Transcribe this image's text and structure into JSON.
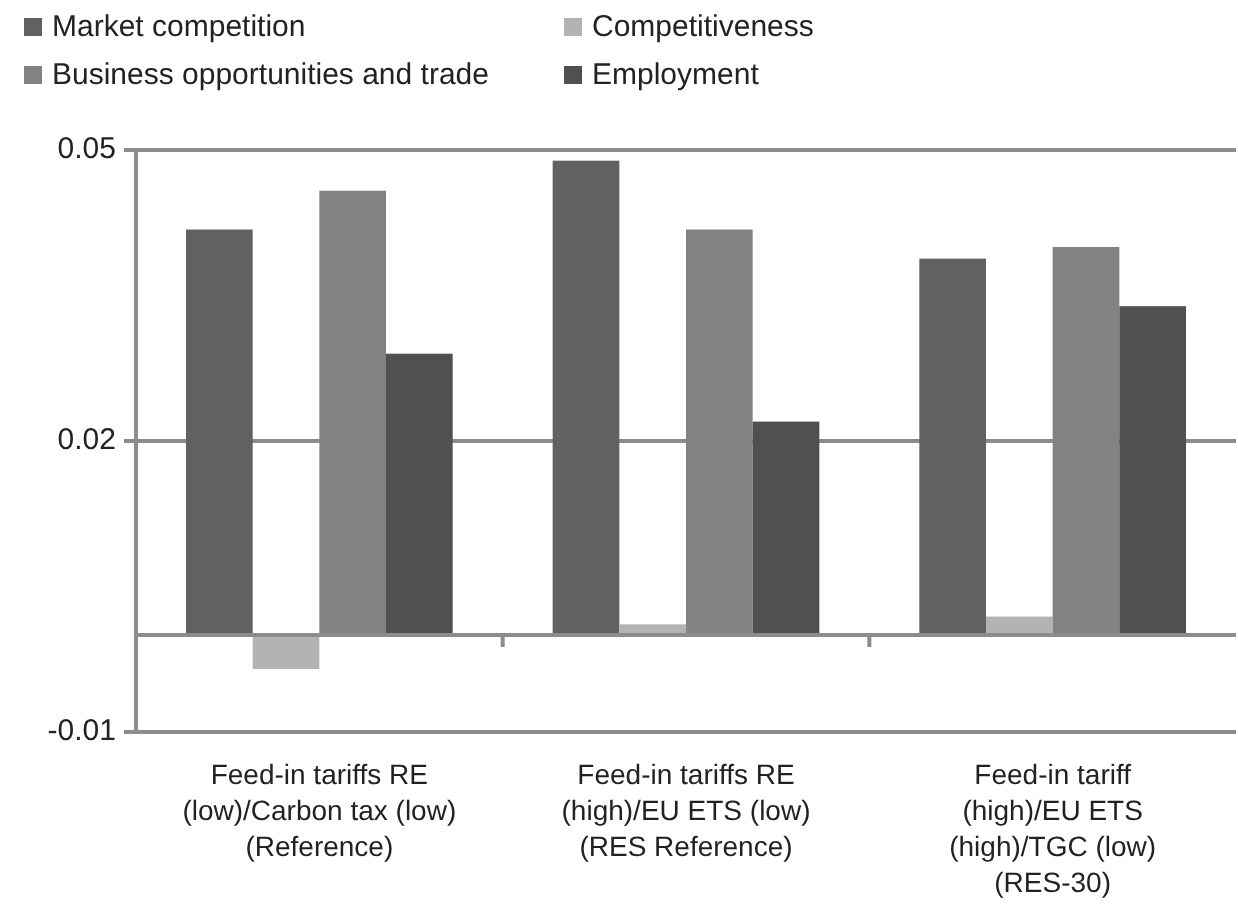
{
  "chart_data": {
    "type": "bar",
    "categories": [
      "Feed-in tariffs RE (low)/Carbon tax (low) (Reference)",
      "Feed-in tariffs RE (high)/EU ETS (low) (RES Reference)",
      "Feed-in tariff (high)/EU ETS (high)/TGC (low) (RES-30)"
    ],
    "series": [
      {
        "name": "Market competition",
        "color": "#616161",
        "values": [
          0.0418,
          0.0489,
          0.0388
        ]
      },
      {
        "name": "Competitiveness",
        "color": "#b3b3b3",
        "values": [
          -0.0035,
          0.0011,
          0.0019
        ]
      },
      {
        "name": "Business opportunities and trade",
        "color": "#828282",
        "values": [
          0.0458,
          0.0418,
          0.04
        ]
      },
      {
        "name": "Employment",
        "color": "#505050",
        "values": [
          0.029,
          0.022,
          0.0339
        ]
      }
    ],
    "ylim": [
      -0.01,
      0.05
    ],
    "yticks": [
      -0.01,
      0.02,
      0.05
    ],
    "grid": "y",
    "legend": "top"
  }
}
